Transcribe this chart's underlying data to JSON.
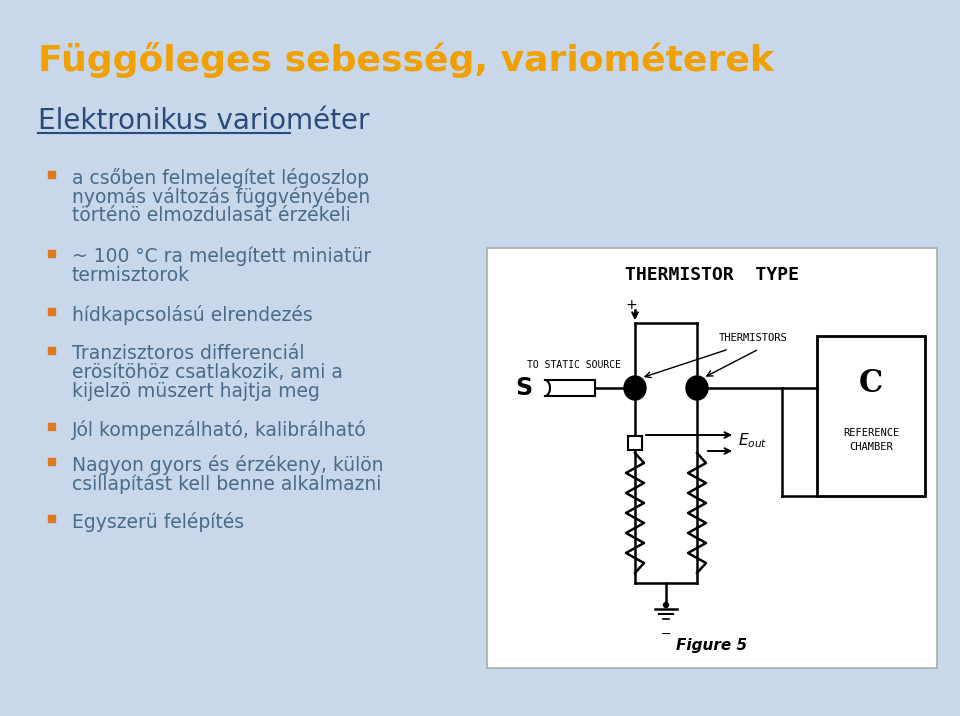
{
  "bg_color": "#c8d8ea",
  "title": "Függőleges sebesség, variométerek",
  "title_color": "#f0a000",
  "title_fontsize": 26,
  "subtitle": "Elektronikus variométer",
  "subtitle_color": "#2a4a7a",
  "subtitle_fontsize": 20,
  "bullet_color": "#e07820",
  "bullet_text_color": "#4a6a8a",
  "bullet_fontsize": 13.5,
  "bullets_line1": [
    "a csőben felmelegítet légoszlop",
    "~ 100 °C ra melegített miniatür",
    "hídkapcsolású elrendezés",
    "Tranzisztoros differenciál",
    "Jól kompenzálható, kalibrálható",
    "Nagyon gyors és érzékeny, külön",
    "Egyszerü felépítés"
  ],
  "bullets_line2": [
    "nyomás változás függvényében",
    "termisztorok",
    "",
    "erösítöhöz csatlakozik, ami a",
    "",
    "csillapítást kell benne alkalmazni",
    ""
  ],
  "bullets_line3": [
    "történö elmozdulasát érzékeli",
    "",
    "",
    "kijelzö müszert hajtja meg",
    "",
    "",
    ""
  ],
  "diagram_bg": "#ffffff",
  "diagram_title": "THERMISTOR  TYPE",
  "figure_caption": "Figure 5"
}
